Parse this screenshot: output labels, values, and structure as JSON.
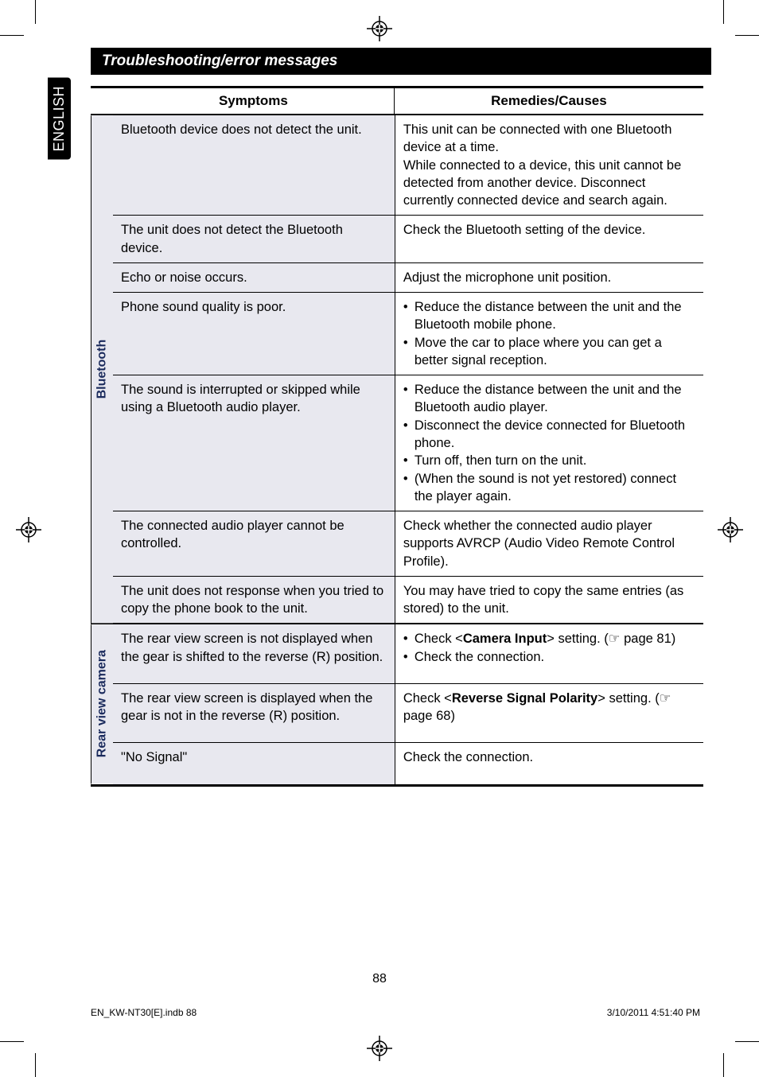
{
  "colors": {
    "header_bg": "#000000",
    "header_fg": "#ffffff",
    "shade_bg": "#e8e8ef",
    "category_fg": "#1a2a5c",
    "body_fg": "#000000",
    "page_bg": "#ffffff"
  },
  "typography": {
    "body_pt": 16.5,
    "header_pt": 17,
    "title_pt": 19,
    "side_tab_pt": 18,
    "footer_pt": 12,
    "page_num_pt": 16
  },
  "side_tab": "ENGLISH",
  "title": "Troubleshooting/error messages",
  "headers": {
    "symptoms": "Symptoms",
    "remedies": "Remedies/Causes"
  },
  "sections": [
    {
      "category": "Bluetooth",
      "rows": [
        {
          "symptom": "Bluetooth device does not detect the unit.",
          "remedy_paras": [
            "This unit can be connected with one Bluetooth device at a time.",
            "While connected to a device, this unit cannot be detected from another device. Disconnect currently connected device and search again."
          ]
        },
        {
          "symptom": "The unit does not detect the Bluetooth device.",
          "remedy_paras": [
            "Check the Bluetooth setting of the device."
          ]
        },
        {
          "symptom": "Echo or noise occurs.",
          "remedy_paras": [
            "Adjust the microphone unit position."
          ]
        },
        {
          "symptom": "Phone sound quality is poor.",
          "remedy_bullets": [
            "Reduce the distance between the unit and the Bluetooth mobile phone.",
            "Move the car to place where you can get a better signal reception."
          ]
        },
        {
          "symptom": "The sound is interrupted or skipped while using a Bluetooth audio player.",
          "remedy_bullets": [
            "Reduce the distance between the unit and the Bluetooth audio player.",
            "Disconnect the device connected for Bluetooth phone.",
            "Turn off, then turn on the unit.",
            "(When the sound is not yet restored) connect the player again."
          ]
        },
        {
          "symptom": "The connected audio player cannot be controlled.",
          "remedy_paras": [
            "Check whether the connected audio player supports AVRCP (Audio Video Remote Control Profile)."
          ]
        },
        {
          "symptom": "The unit does not response when you tried to copy the phone book to the unit.",
          "remedy_paras": [
            "You may have tried to copy the same entries (as stored) to the unit."
          ]
        }
      ]
    },
    {
      "category": "Rear view camera",
      "rows": [
        {
          "symptom": "The rear view screen is not displayed when the gear is shifted to the reverse (R) position.",
          "remedy_bullets_html": [
            "Check <<b>Camera Input</b>> setting. (☞ page 81)",
            "Check the connection."
          ]
        },
        {
          "symptom": "The rear view screen is displayed when the gear is not in the reverse (R) position.",
          "remedy_html": "Check <<b>Reverse Signal Polarity</b>> setting. (☞ page 68)"
        },
        {
          "symptom": "\"No Signal\"",
          "remedy_paras": [
            "Check the connection."
          ]
        }
      ]
    }
  ],
  "page_number": "88",
  "footer_left": "EN_KW-NT30[E].indb   88",
  "footer_right": "3/10/2011   4:51:40 PM"
}
